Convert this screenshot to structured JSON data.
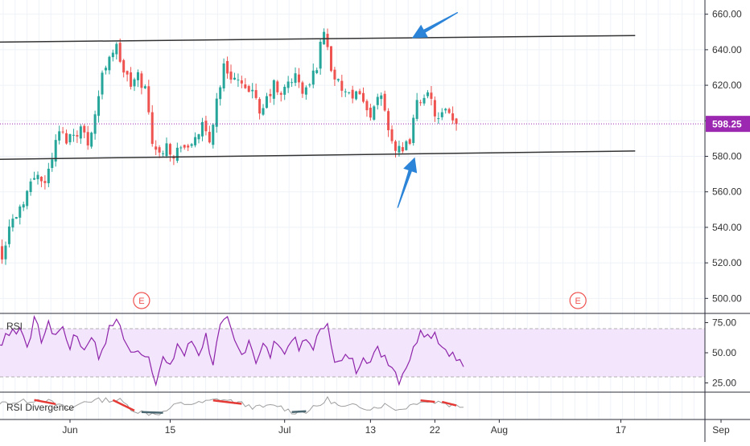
{
  "chart_data": [
    {
      "type": "candlestick",
      "title": "",
      "ylim": [
        492,
        668
      ],
      "y_ticks": [
        "660.00",
        "640.00",
        "620.00",
        "600.00",
        "580.00",
        "560.00",
        "540.00",
        "520.00",
        "500.00"
      ],
      "y_tick_values": [
        660,
        640,
        620,
        600,
        580,
        560,
        540,
        520,
        500
      ],
      "x_ticks": [
        "Jun",
        "15",
        "Jul",
        "13",
        "22",
        "Aug",
        "17",
        "Sep"
      ],
      "x_tick_days": [
        0,
        14,
        30,
        42,
        51,
        60,
        77,
        91
      ],
      "last_price": 598.25,
      "last_price_label": "598.25",
      "series_anchors": [
        [
          -16,
          507
        ],
        [
          -14,
          525
        ],
        [
          -12,
          532
        ],
        [
          -10,
          540
        ],
        [
          -9,
          522
        ],
        [
          -8,
          540
        ],
        [
          -6,
          556
        ],
        [
          -4,
          572
        ],
        [
          -3,
          565
        ],
        [
          -2,
          580
        ],
        [
          -1,
          594
        ],
        [
          0,
          590
        ],
        [
          2,
          596
        ],
        [
          3,
          588
        ],
        [
          4,
          604
        ],
        [
          5,
          625
        ],
        [
          6,
          638
        ],
        [
          7,
          641
        ],
        [
          8,
          628
        ],
        [
          9,
          620
        ],
        [
          10,
          625
        ],
        [
          11,
          618
        ],
        [
          12,
          590
        ],
        [
          13,
          580
        ],
        [
          14,
          590
        ],
        [
          15,
          578
        ],
        [
          16,
          588
        ],
        [
          17,
          582
        ],
        [
          18,
          592
        ],
        [
          19,
          596
        ],
        [
          20,
          588
        ],
        [
          21,
          612
        ],
        [
          22,
          630
        ],
        [
          23,
          626
        ],
        [
          24,
          622
        ],
        [
          25,
          615
        ],
        [
          26,
          620
        ],
        [
          27,
          601
        ],
        [
          28,
          612
        ],
        [
          29,
          620
        ],
        [
          30,
          613
        ],
        [
          31,
          622
        ],
        [
          32,
          625
        ],
        [
          33,
          616
        ],
        [
          34,
          620
        ],
        [
          35,
          632
        ],
        [
          36,
          652
        ],
        [
          37,
          630
        ],
        [
          38,
          620
        ],
        [
          39,
          616
        ],
        [
          40,
          610
        ],
        [
          41,
          618
        ],
        [
          42,
          604
        ],
        [
          43,
          606
        ],
        [
          44,
          614
        ],
        [
          45,
          597
        ],
        [
          46,
          584
        ],
        [
          47,
          581
        ],
        [
          48,
          590
        ],
        [
          49,
          609
        ],
        [
          50,
          616
        ],
        [
          51,
          610
        ],
        [
          52,
          600
        ],
        [
          53,
          605
        ],
        [
          54,
          598.25
        ]
      ],
      "trendlines": [
        {
          "start": [
            -17,
            644
          ],
          "end": [
            79,
            648
          ]
        },
        {
          "start": [
            -16,
            578
          ],
          "end": [
            79,
            583
          ]
        }
      ],
      "earnings_markers": [
        {
          "day": 10,
          "label": "E"
        },
        {
          "day": 71,
          "label": "E"
        }
      ],
      "arrows": [
        {
          "tail": [
            54.2,
            661
          ],
          "head": [
            47.8,
            646.5
          ]
        },
        {
          "tail": [
            45.8,
            551
          ],
          "head": [
            48.2,
            579.5
          ]
        }
      ],
      "colors": {
        "up": "#26a69a",
        "down": "#ef5350",
        "trendline": "#333333",
        "arrow": "#2b84d8",
        "price_line": "#9c27b0"
      }
    },
    {
      "type": "line",
      "name": "RSI",
      "ylim": [
        18,
        82
      ],
      "y_ticks": [
        "75.00",
        "50.00",
        "25.00"
      ],
      "y_tick_values": [
        75,
        50,
        25
      ],
      "band": [
        30,
        70
      ],
      "color": "#8e24aa",
      "band_color": "#f3e5fc",
      "anchors": [
        [
          -16,
          52
        ],
        [
          -14,
          62
        ],
        [
          -13,
          48
        ],
        [
          -11,
          70
        ],
        [
          -10,
          55
        ],
        [
          -9,
          66
        ],
        [
          -7,
          70
        ],
        [
          -6,
          58
        ],
        [
          -5,
          76
        ],
        [
          -4,
          62
        ],
        [
          -3,
          72
        ],
        [
          -2,
          66
        ],
        [
          -1,
          70
        ],
        [
          0,
          56
        ],
        [
          1,
          64
        ],
        [
          2,
          52
        ],
        [
          3,
          66
        ],
        [
          4,
          46
        ],
        [
          5,
          62
        ],
        [
          6,
          75
        ],
        [
          7,
          73
        ],
        [
          8,
          55
        ],
        [
          9,
          48
        ],
        [
          10,
          52
        ],
        [
          11,
          47
        ],
        [
          12,
          28
        ],
        [
          13,
          45
        ],
        [
          14,
          36
        ],
        [
          15,
          58
        ],
        [
          16,
          48
        ],
        [
          17,
          60
        ],
        [
          18,
          50
        ],
        [
          19,
          64
        ],
        [
          20,
          42
        ],
        [
          21,
          70
        ],
        [
          22,
          76
        ],
        [
          23,
          58
        ],
        [
          24,
          48
        ],
        [
          25,
          62
        ],
        [
          26,
          44
        ],
        [
          27,
          56
        ],
        [
          28,
          48
        ],
        [
          29,
          62
        ],
        [
          30,
          48
        ],
        [
          31,
          64
        ],
        [
          32,
          52
        ],
        [
          33,
          60
        ],
        [
          34,
          56
        ],
        [
          35,
          66
        ],
        [
          36,
          79
        ],
        [
          37,
          40
        ],
        [
          38,
          42
        ],
        [
          39,
          48
        ],
        [
          40,
          36
        ],
        [
          41,
          50
        ],
        [
          42,
          42
        ],
        [
          43,
          52
        ],
        [
          44,
          48
        ],
        [
          45,
          40
        ],
        [
          46,
          28
        ],
        [
          47,
          40
        ],
        [
          48,
          52
        ],
        [
          49,
          72
        ],
        [
          50,
          64
        ],
        [
          51,
          68
        ],
        [
          52,
          55
        ],
        [
          53,
          52
        ],
        [
          54,
          44
        ],
        [
          55,
          40
        ]
      ]
    },
    {
      "type": "line",
      "name": "RSI Divergence",
      "color": "#9e9e9e",
      "bull_color": "#4a6670",
      "bear_color": "#e53935",
      "anchors": [
        [
          -16,
          0.2
        ],
        [
          -13,
          -0.6
        ],
        [
          -10,
          0.4
        ],
        [
          -7,
          0.6
        ],
        [
          -4,
          1.0
        ],
        [
          -2,
          0.3
        ],
        [
          0,
          -0.5
        ],
        [
          2,
          0.7
        ],
        [
          5,
          0.9
        ],
        [
          7,
          0.8
        ],
        [
          9,
          -0.6
        ],
        [
          11,
          -1.0
        ],
        [
          13,
          -0.9
        ],
        [
          15,
          0.3
        ],
        [
          18,
          0.4
        ],
        [
          21,
          1.0
        ],
        [
          23,
          0.6
        ],
        [
          26,
          -0.2
        ],
        [
          29,
          0.1
        ],
        [
          31,
          -0.8
        ],
        [
          33,
          -0.7
        ],
        [
          35,
          0.2
        ],
        [
          36,
          1.0
        ],
        [
          38,
          -0.2
        ],
        [
          40,
          0.1
        ],
        [
          42,
          -0.3
        ],
        [
          44,
          0.2
        ],
        [
          46,
          -0.5
        ],
        [
          48,
          0.3
        ],
        [
          49,
          0.8
        ],
        [
          50,
          0.6
        ],
        [
          52,
          0.6
        ],
        [
          53,
          0.2
        ],
        [
          55,
          0.0
        ]
      ],
      "bear_segments": [
        [
          -5,
          -2
        ],
        [
          6,
          9
        ],
        [
          20,
          24
        ],
        [
          49,
          51
        ],
        [
          52,
          54
        ]
      ],
      "bull_segments": [
        [
          10,
          13
        ],
        [
          31,
          33
        ]
      ]
    }
  ],
  "panes": {
    "rsi_label": "RSI",
    "div_label": "RSI Divergence"
  }
}
